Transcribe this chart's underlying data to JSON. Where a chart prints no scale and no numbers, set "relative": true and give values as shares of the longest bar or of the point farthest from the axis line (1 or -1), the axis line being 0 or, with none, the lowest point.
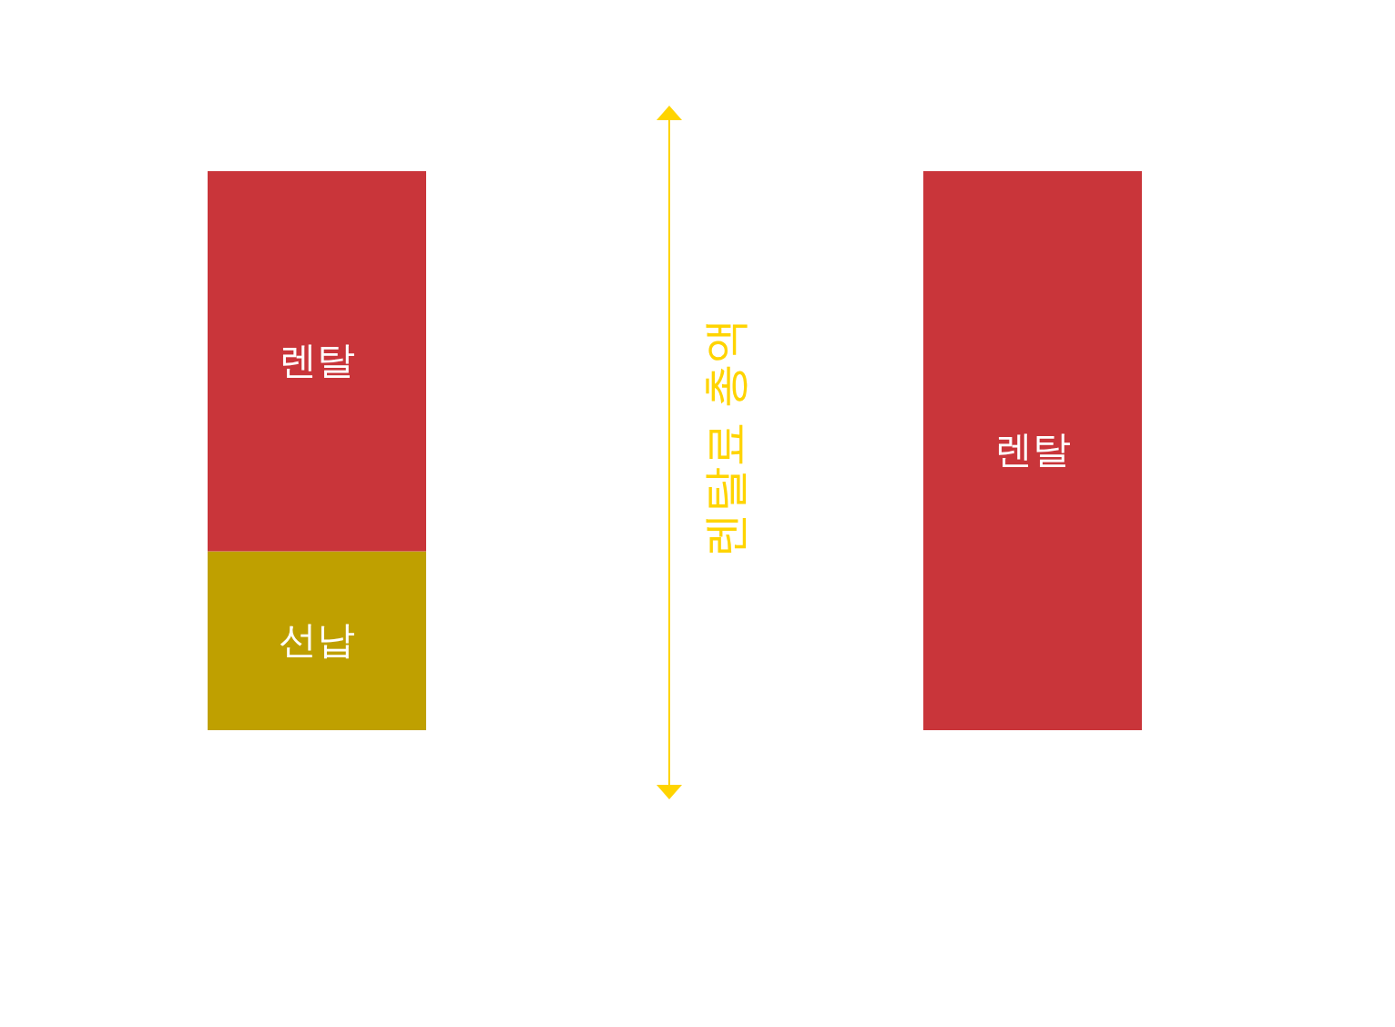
{
  "chart_data": {
    "type": "bar",
    "relative": true,
    "stacked": true,
    "categories": [
      null,
      null
    ],
    "series": [
      {
        "name": "선납",
        "color": "#bfa000",
        "values": [
          0.32,
          null
        ]
      },
      {
        "name": "렌탈",
        "color": "#c9353a",
        "values": [
          0.68,
          1
        ]
      }
    ],
    "annotations": [
      "렌탈료 총액"
    ]
  }
}
